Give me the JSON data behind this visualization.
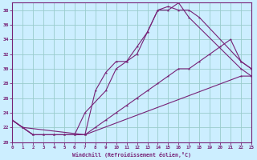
{
  "xlabel": "Windchill (Refroidissement éolien,°C)",
  "bg_color": "#cceeff",
  "line_color": "#772277",
  "grid_color": "#99cccc",
  "xmin": 0,
  "xmax": 23,
  "ymin": 20,
  "ymax": 39,
  "yticks": [
    20,
    22,
    24,
    26,
    28,
    30,
    32,
    34,
    36,
    38
  ],
  "xtick_labels": [
    "0",
    "1",
    "2",
    "3",
    "4",
    "5",
    "6",
    "7",
    "8",
    "9",
    "10",
    "11",
    "12",
    "13",
    "14",
    "15",
    "16",
    "17",
    "18",
    "19",
    "20",
    "21",
    "22",
    "23"
  ],
  "lines": [
    {
      "x": [
        0,
        1,
        7,
        8,
        9,
        10,
        11,
        12,
        13,
        14,
        15,
        16,
        17,
        22,
        23
      ],
      "y": [
        23,
        22,
        21,
        27,
        29.5,
        31,
        31,
        32,
        35,
        38,
        38,
        39,
        37,
        30,
        29
      ]
    },
    {
      "x": [
        0,
        1,
        2,
        3,
        4,
        5,
        6,
        7,
        8,
        9,
        10,
        11,
        12,
        13,
        14,
        15,
        16,
        17,
        18,
        19,
        20,
        21,
        22,
        23
      ],
      "y": [
        23,
        22,
        21,
        21,
        21,
        21,
        21,
        21,
        22,
        23,
        24,
        25,
        26,
        27,
        28,
        29,
        30,
        30,
        31,
        32,
        33,
        34,
        31,
        30
      ]
    },
    {
      "x": [
        0,
        2,
        3,
        4,
        5,
        6,
        7,
        22,
        23
      ],
      "y": [
        23,
        21,
        21,
        21,
        21,
        21,
        21,
        29,
        29
      ]
    },
    {
      "x": [
        0,
        1,
        2,
        3,
        4,
        5,
        6,
        7,
        9,
        10,
        11,
        12,
        13,
        14,
        15,
        16,
        17,
        18,
        22,
        23
      ],
      "y": [
        23,
        22,
        21,
        21,
        21,
        21,
        21,
        24,
        27,
        30,
        31,
        33,
        35,
        38,
        38.5,
        38,
        38,
        37,
        31,
        30
      ]
    }
  ]
}
